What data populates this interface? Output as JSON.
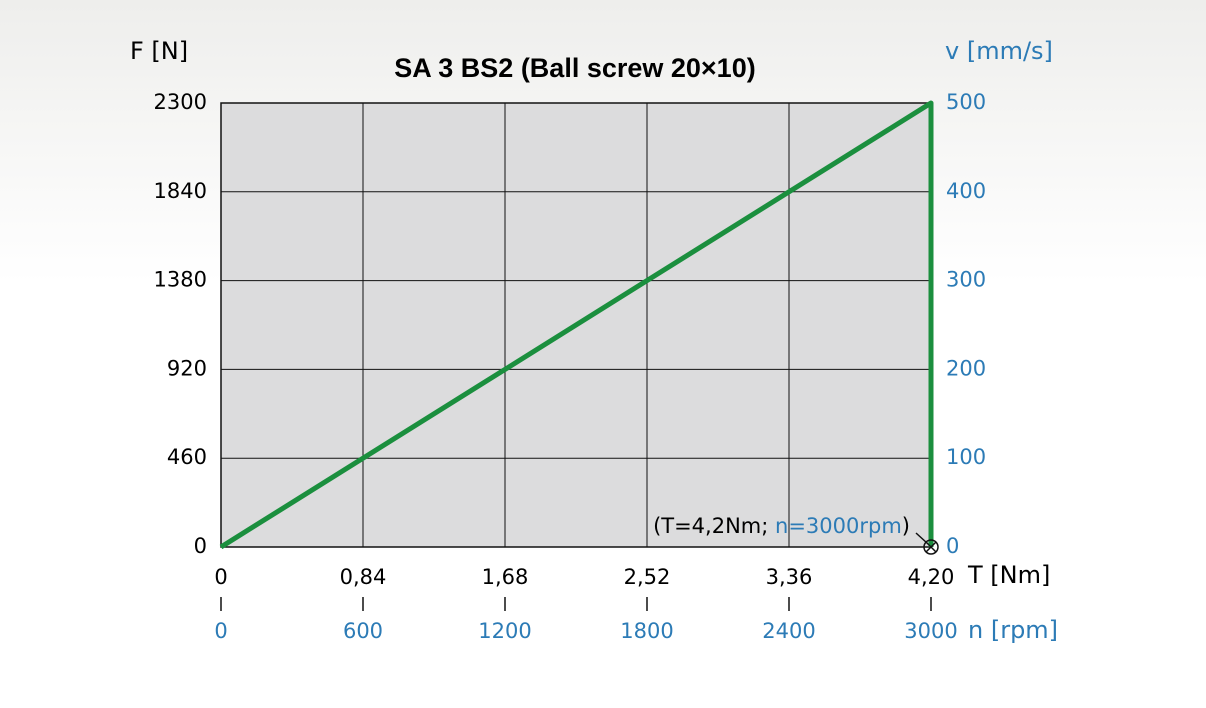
{
  "chart_data": {
    "type": "line",
    "title": "SA 3   BS2 (Ball screw 20×10)",
    "y_label": "F [N]",
    "y2_label": "v [mm/s]",
    "x_label": "T [Nm]",
    "x2_label": "n [rpm]",
    "xlim": [
      0,
      4.2
    ],
    "xticks": [
      0,
      {
        "value": 0.84,
        "label": "0,84"
      },
      {
        "value": 1.68,
        "label": "1,68"
      },
      {
        "value": 2.52,
        "label": "2,52"
      },
      {
        "value": 3.36,
        "label": "3,36"
      },
      {
        "value": 4.2,
        "label": "4,20"
      }
    ],
    "x2lim": [
      0,
      3000
    ],
    "x2ticks": [
      0,
      600,
      1200,
      1800,
      2400,
      3000
    ],
    "ylim": [
      0,
      2300
    ],
    "yticks": [
      0,
      460,
      920,
      1380,
      1840,
      2300
    ],
    "y2lim": [
      0,
      500
    ],
    "y2ticks": [
      0,
      100,
      200,
      300,
      400,
      500
    ],
    "grid": true,
    "series": [
      {
        "name": null,
        "color": "#1b8f3e",
        "x": [
          0,
          4.2,
          4.2
        ],
        "values": [
          0,
          2300,
          0
        ]
      }
    ],
    "annotation": [
      "(T=4,2Nm;",
      "n=3000rpm",
      ")"
    ]
  }
}
